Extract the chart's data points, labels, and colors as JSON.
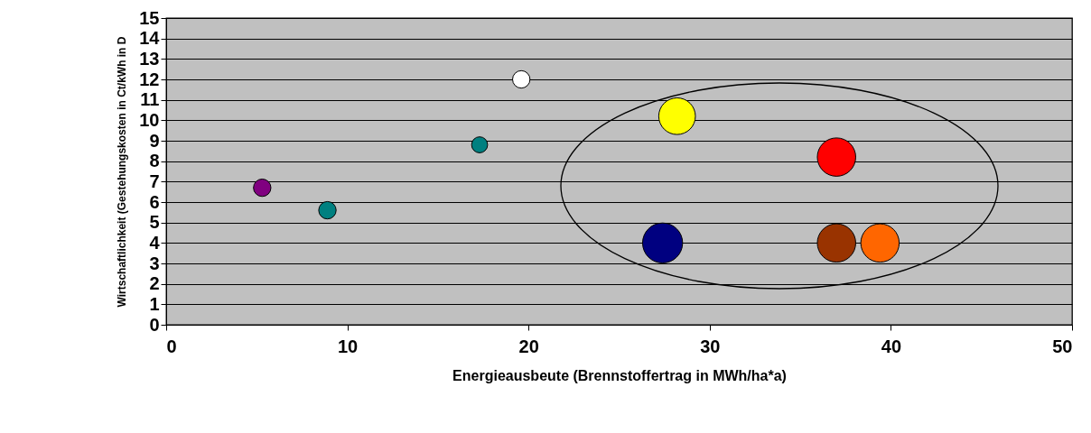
{
  "chart_data": {
    "type": "bubble",
    "xlabel": "Energieausbeute (Brennstoffertrag in MWh/ha*a)",
    "ylabel": "Wirtschaftlichkeit (Gestehungskosten in Ct/kWh in D",
    "x": [
      5.3,
      8.9,
      17.3,
      19.6,
      28.2,
      37.0,
      27.4,
      37.0,
      39.4
    ],
    "values": [
      6.7,
      5.6,
      8.8,
      12.0,
      10.2,
      8.2,
      4.0,
      4.0,
      4.0
    ],
    "sizes": [
      0.19,
      0.19,
      0.16,
      0.19,
      0.84,
      0.92,
      1,
      0.92,
      0.92
    ],
    "colors": [
      "#800080",
      "#008080",
      "#008080",
      "#ffffff",
      "#ffff00",
      "#ff0000",
      "#000080",
      "#993300",
      "#ff6600"
    ],
    "xlim": [
      0,
      50
    ],
    "xticks": [
      0,
      10,
      20,
      30,
      40,
      50
    ],
    "ylim": [
      0,
      15
    ],
    "yticks": [
      0,
      1,
      2,
      3,
      4,
      5,
      6,
      7,
      8,
      9,
      10,
      11,
      12,
      13,
      14,
      15
    ],
    "grid": "y"
  }
}
